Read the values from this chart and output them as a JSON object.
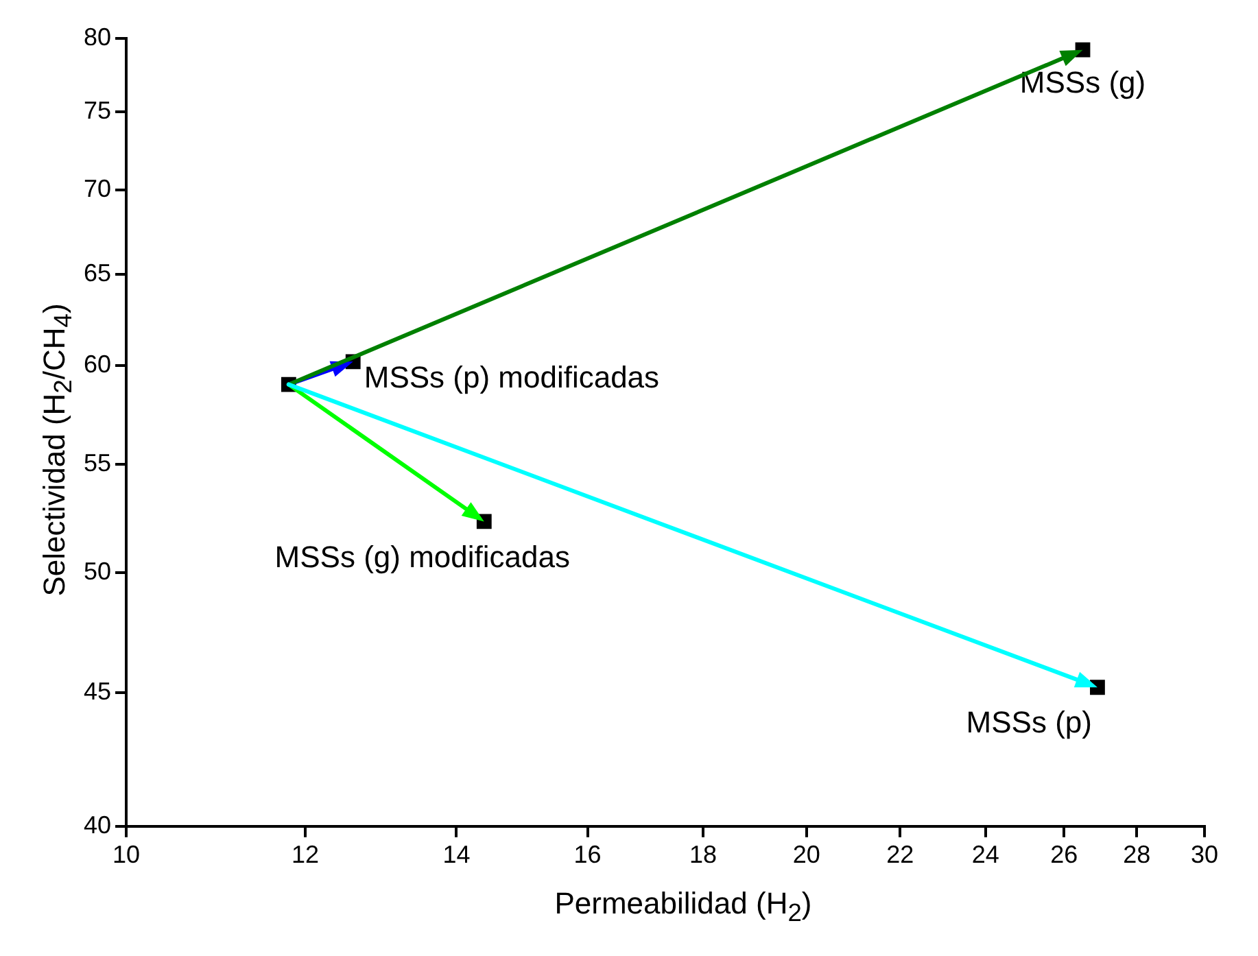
{
  "chart_data": {
    "type": "scatter",
    "xlabel": "Permeabilidad (H$_{2}$)",
    "ylabel": "Selectividad (H$_{2}$/CH$_{4}$)",
    "log": "xy",
    "xlim": [
      10,
      30
    ],
    "xticks": [
      10,
      12,
      14,
      16,
      18,
      20,
      22,
      24,
      26,
      28,
      30
    ],
    "ylim": [
      40,
      80
    ],
    "yticks": [
      40,
      45,
      50,
      55,
      60,
      65,
      70,
      75,
      80
    ],
    "grid": false,
    "legend": false,
    "marker": "square",
    "series": [
      {
        "type": "scatter",
        "color": "#000000",
        "x": [
          11.8,
          12.6,
          26.5,
          14.4,
          26.9
        ],
        "values": [
          59,
          60.2,
          79.2,
          52.3,
          45.2
        ]
      }
    ],
    "annotations": [
      {
        "text": "MSSs (p) modificadas",
        "x": 12.6,
        "y": 60.2
      },
      {
        "text": "MSSs (g)",
        "x": 26.5,
        "y": 79.2
      },
      {
        "text": "MSSs (g) modificadas",
        "x": 14.4,
        "y": 52.3
      },
      {
        "text": "MSSs (p)",
        "x": 26.9,
        "y": 45.2
      }
    ]
  }
}
